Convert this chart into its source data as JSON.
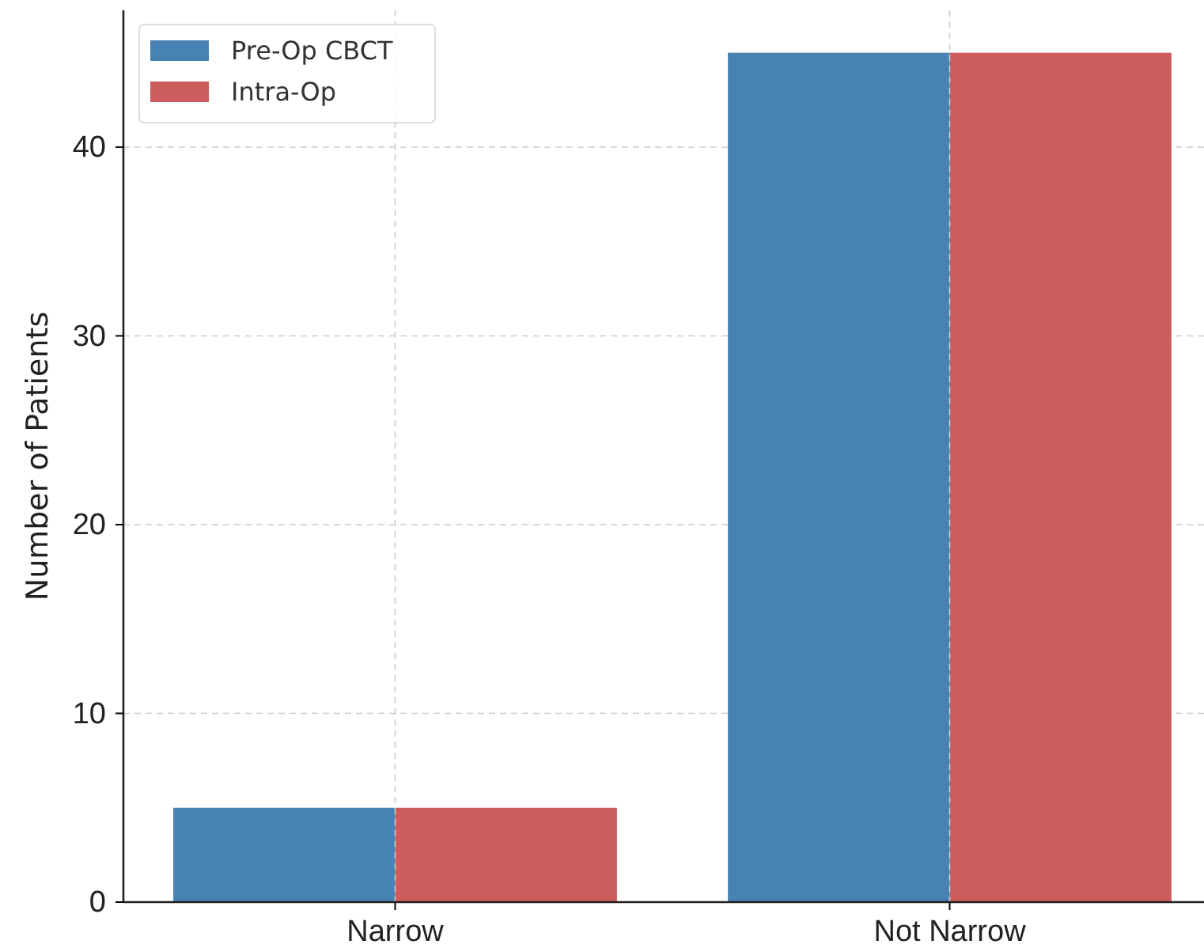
{
  "chart_data": {
    "type": "bar",
    "ylabel": "Number of Patients",
    "categories": [
      "Narrow",
      "Not Narrow"
    ],
    "series": [
      {
        "name": "Pre-Op CBCT",
        "color": "#4682b4",
        "values": [
          5,
          45
        ]
      },
      {
        "name": "Intra-Op",
        "color": "#cd5c5c",
        "values": [
          5,
          45
        ]
      }
    ],
    "ylim": [
      0,
      47.25
    ],
    "yticks": [
      0,
      10,
      20,
      30,
      40
    ],
    "grid": true,
    "legend": "top left"
  }
}
